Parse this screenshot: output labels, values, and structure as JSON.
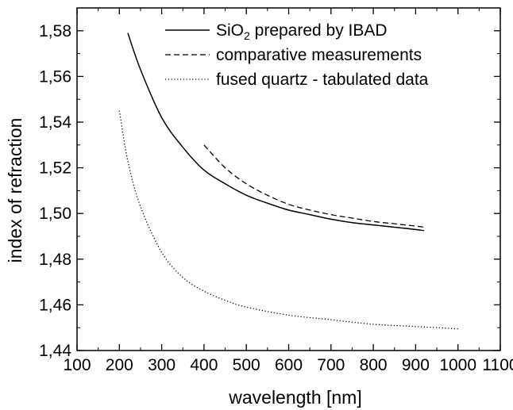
{
  "chart_data": {
    "type": "line",
    "title": "",
    "xlabel": "wavelength [nm]",
    "ylabel": "index of refraction",
    "xlim": [
      100,
      1100
    ],
    "ylim": [
      1.44,
      1.59
    ],
    "x_ticks": [
      100,
      200,
      300,
      400,
      500,
      600,
      700,
      800,
      900,
      1000,
      1100
    ],
    "x_tick_labels": [
      "100",
      "200",
      "300",
      "400",
      "500",
      "600",
      "700",
      "800",
      "900",
      "1000",
      "1100"
    ],
    "y_ticks": [
      1.44,
      1.46,
      1.48,
      1.5,
      1.52,
      1.54,
      1.56,
      1.58
    ],
    "y_tick_labels": [
      "1,44",
      "1,46",
      "1,48",
      "1,50",
      "1,52",
      "1,54",
      "1,56",
      "1,58"
    ],
    "grid": false,
    "legend_position": "top-right",
    "series": [
      {
        "name": "SiO",
        "name_subscript": "2",
        "name_suffix": " prepared by IBAD",
        "style": "solid",
        "color": "#000000",
        "x": [
          220,
          250,
          300,
          350,
          400,
          450,
          500,
          550,
          600,
          650,
          700,
          750,
          800,
          850,
          900,
          920
        ],
        "y": [
          1.579,
          1.563,
          1.542,
          1.529,
          1.519,
          1.513,
          1.508,
          1.5045,
          1.5015,
          1.4995,
          1.4975,
          1.496,
          1.495,
          1.494,
          1.493,
          1.4925
        ]
      },
      {
        "name": "comparative measurements",
        "style": "dashed",
        "color": "#000000",
        "x": [
          400,
          450,
          500,
          550,
          600,
          650,
          700,
          750,
          800,
          850,
          900,
          920
        ],
        "y": [
          1.53,
          1.52,
          1.513,
          1.508,
          1.504,
          1.5015,
          1.4995,
          1.498,
          1.4965,
          1.4955,
          1.4945,
          1.494
        ]
      },
      {
        "name": "fused quartz - tabulated data",
        "style": "dotted",
        "color": "#000000",
        "x": [
          200,
          220,
          250,
          300,
          350,
          400,
          450,
          500,
          600,
          700,
          800,
          900,
          1000
        ],
        "y": [
          1.545,
          1.523,
          1.503,
          1.483,
          1.472,
          1.466,
          1.462,
          1.459,
          1.4555,
          1.4535,
          1.4515,
          1.4505,
          1.4495
        ]
      }
    ]
  }
}
